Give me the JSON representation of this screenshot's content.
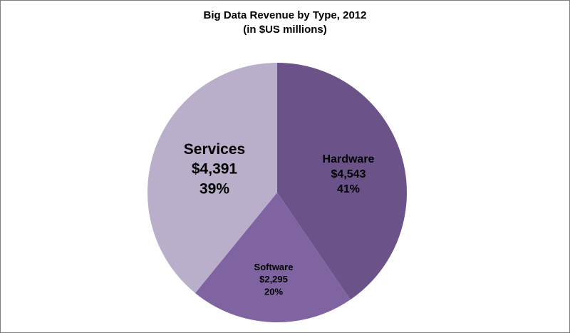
{
  "chart_data": {
    "type": "pie",
    "title": "Big Data Revenue by Type, 2012",
    "subtitle": "(in $US millions)",
    "slices": [
      {
        "name": "Hardware",
        "value": 4543,
        "value_label": "$4,543",
        "percent_label": "41%",
        "color": "#6b5389"
      },
      {
        "name": "Software",
        "value": 2295,
        "value_label": "$2,295",
        "percent_label": "20%",
        "color": "#8064a2"
      },
      {
        "name": "Services",
        "value": 4391,
        "value_label": "$4,391",
        "percent_label": "39%",
        "color": "#b9afcb"
      }
    ],
    "legend": "none",
    "start_angle": "12 o'clock",
    "direction": "clockwise"
  }
}
